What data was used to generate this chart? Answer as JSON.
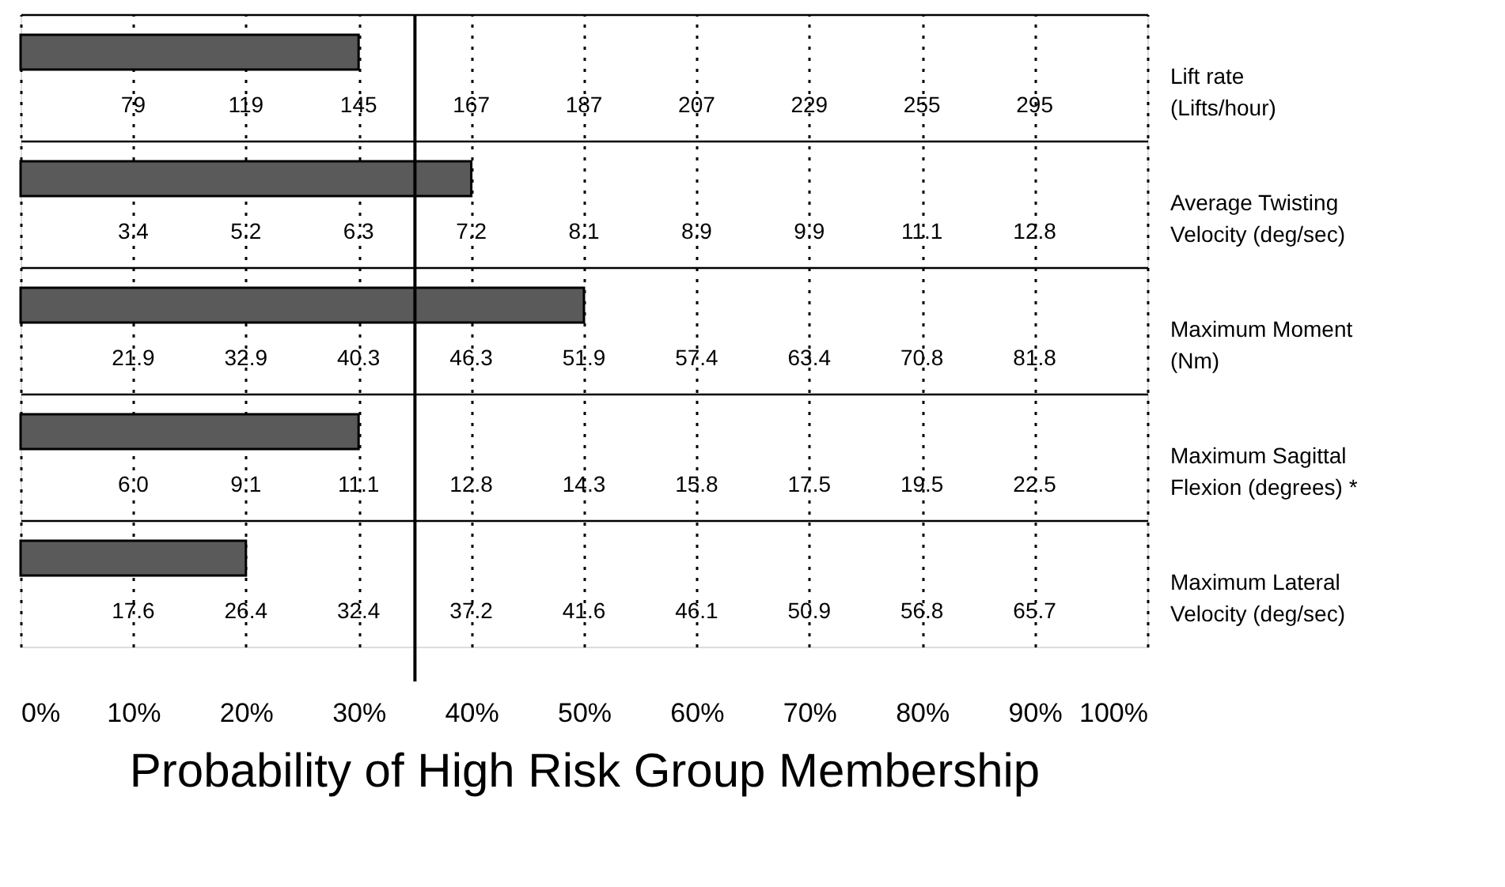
{
  "chart_data": {
    "type": "bar",
    "orientation": "horizontal",
    "xlabel": "Probability of High Risk Group Membership",
    "categories": [
      "Lift rate (Lifts/hour)",
      "Average Twisting Velocity (deg/sec)",
      "Maximum Moment (Nm)",
      "Maximum Sagittal Flexion (degrees) *",
      "Maximum Lateral Velocity (deg/sec)"
    ],
    "values": [
      30,
      40,
      50,
      30,
      20
    ],
    "color": "#5a5a5a",
    "xlim": [
      0,
      100
    ],
    "xticks": [
      {
        "value": 0,
        "label": "0%"
      },
      {
        "value": 10,
        "label": "10%"
      },
      {
        "value": 20,
        "label": "20%"
      },
      {
        "value": 30,
        "label": "30%"
      },
      {
        "value": 40,
        "label": "40%"
      },
      {
        "value": 50,
        "label": "50%"
      },
      {
        "value": 60,
        "label": "60%"
      },
      {
        "value": 70,
        "label": "70%"
      },
      {
        "value": 80,
        "label": "80%"
      },
      {
        "value": 90,
        "label": "90%"
      },
      {
        "value": 100,
        "label": "100%"
      }
    ],
    "grid": "x",
    "ref_lines": [
      {
        "axis": "x",
        "value": 35,
        "color": "#000000"
      }
    ],
    "annotations": [
      "79",
      "119",
      "145",
      "167",
      "187",
      "207",
      "229",
      "255",
      "295",
      "3.4",
      "5.2",
      "6.3",
      "7.2",
      "8.1",
      "8.9",
      "9.9",
      "11.1",
      "12.8",
      "21.9",
      "32.9",
      "40.3",
      "46.3",
      "51.9",
      "57.4",
      "63.4",
      "70.8",
      "81.8",
      "6.0",
      "9.1",
      "11.1",
      "12.8",
      "14.3",
      "15.8",
      "17.5",
      "19.5",
      "22.5",
      "17.6",
      "26.4",
      "32.4",
      "37.2",
      "41.6",
      "46.1",
      "50.9",
      "56.8",
      "65.7"
    ]
  }
}
